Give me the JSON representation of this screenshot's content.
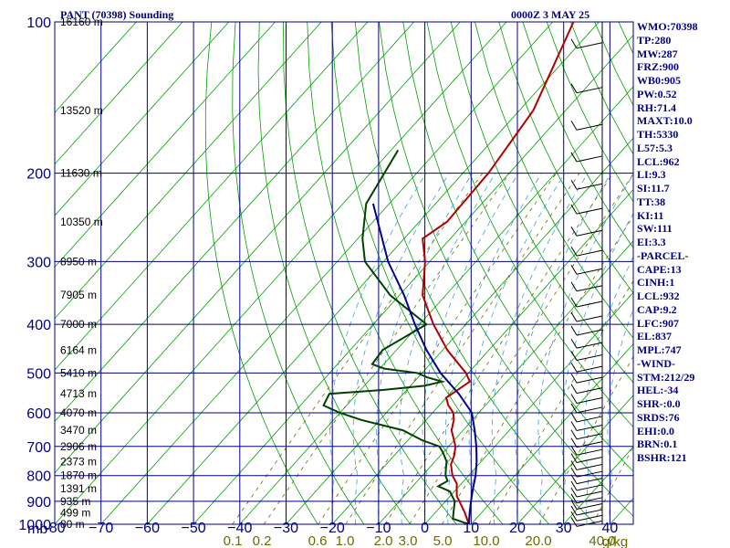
{
  "header": {
    "station": "PANT (70398) Sounding",
    "time": "0000Z  3 MAY 25"
  },
  "colors": {
    "axis": "#000080",
    "temperature": "#b00000",
    "dewpoint": "#004000",
    "parcel": "#00008b",
    "isotherm": "#00a000",
    "mixing_ratio": "#6b6b00"
  },
  "chart_data": {
    "type": "line",
    "title": "PANT (70398) Sounding",
    "pressure_unit_label": "mb",
    "mixing_ratio_unit_label": "g/kg",
    "pressure_levels": [
      100,
      200,
      300,
      400,
      500,
      600,
      700,
      800,
      900,
      1000
    ],
    "pressure_tick_labels": [
      "100",
      "200",
      "300",
      "400",
      "500",
      "600",
      "700",
      "800",
      "900",
      "1000"
    ],
    "temperature_ticks": [
      -80,
      -70,
      -60,
      -50,
      -40,
      -30,
      -20,
      -10,
      0,
      10,
      20,
      30,
      40
    ],
    "temperature_tick_labels": [
      "-80",
      "−70",
      "−60",
      "−50",
      "−40",
      "−30",
      "−20",
      "−10",
      "0",
      "10",
      "20",
      "30",
      "40"
    ],
    "mixing_ratio_ticks": [
      0.1,
      0.2,
      0.6,
      1.0,
      2.0,
      3.0,
      5.0,
      10.0,
      20.0,
      40.0
    ],
    "mixing_ratio_tick_labels": [
      "0.1",
      "0.2",
      "0.6",
      "1.0",
      "2.0",
      "3.0",
      "5.0",
      "10.0",
      "20.0",
      "40.0"
    ],
    "heights": [
      {
        "p": 100,
        "label": "16160 m"
      },
      {
        "p": 150,
        "label": "13520 m"
      },
      {
        "p": 200,
        "label": "11630 m"
      },
      {
        "p": 250,
        "label": "10350 m"
      },
      {
        "p": 300,
        "label": "8950 m"
      },
      {
        "p": 350,
        "label": "7905 m"
      },
      {
        "p": 400,
        "label": "7000 m"
      },
      {
        "p": 450,
        "label": "6164 m"
      },
      {
        "p": 500,
        "label": "5410 m"
      },
      {
        "p": 550,
        "label": "4713 m"
      },
      {
        "p": 600,
        "label": "4070 m"
      },
      {
        "p": 650,
        "label": "3470 m"
      },
      {
        "p": 700,
        "label": "2906 m"
      },
      {
        "p": 750,
        "label": "2373 m"
      },
      {
        "p": 800,
        "label": "1870 m"
      },
      {
        "p": 850,
        "label": "1391 m"
      },
      {
        "p": 900,
        "label": "935 m"
      },
      {
        "p": 950,
        "label": "499 m"
      },
      {
        "p": 1000,
        "label": "80 m"
      }
    ],
    "series": [
      {
        "key": "temperature",
        "points": [
          [
            100,
            -65.5
          ],
          [
            150,
            -57
          ],
          [
            200,
            -54.5
          ],
          [
            250,
            -54
          ],
          [
            270,
            -56
          ],
          [
            300,
            -51
          ],
          [
            350,
            -45
          ],
          [
            400,
            -37
          ],
          [
            450,
            -29
          ],
          [
            500,
            -20.5
          ],
          [
            520,
            -18
          ],
          [
            540,
            -19
          ],
          [
            560,
            -20
          ],
          [
            580,
            -18
          ],
          [
            600,
            -15.5
          ],
          [
            620,
            -14
          ],
          [
            650,
            -12.5
          ],
          [
            700,
            -8.5
          ],
          [
            730,
            -7
          ],
          [
            760,
            -6
          ],
          [
            800,
            -3.5
          ],
          [
            830,
            -1
          ],
          [
            850,
            0
          ],
          [
            880,
            1.5
          ],
          [
            900,
            3
          ],
          [
            950,
            6.5
          ],
          [
            1000,
            9.5
          ]
        ]
      },
      {
        "key": "dewpoint",
        "points": [
          [
            180,
            -78.5
          ],
          [
            230,
            -75
          ],
          [
            270,
            -69
          ],
          [
            300,
            -64
          ],
          [
            350,
            -52
          ],
          [
            400,
            -38.5
          ],
          [
            450,
            -43
          ],
          [
            480,
            -42.5
          ],
          [
            490,
            -39
          ],
          [
            500,
            -31
          ],
          [
            510,
            -28
          ],
          [
            520,
            -24
          ],
          [
            530,
            -27
          ],
          [
            540,
            -35
          ],
          [
            550,
            -46
          ],
          [
            580,
            -45
          ],
          [
            600,
            -40
          ],
          [
            620,
            -34
          ],
          [
            650,
            -23
          ],
          [
            680,
            -17
          ],
          [
            700,
            -12
          ],
          [
            720,
            -10
          ],
          [
            750,
            -7.5
          ],
          [
            770,
            -6.5
          ],
          [
            800,
            -5
          ],
          [
            820,
            -3.5
          ],
          [
            840,
            -4.5
          ],
          [
            860,
            -1
          ],
          [
            900,
            2
          ],
          [
            950,
            4
          ],
          [
            975,
            5
          ],
          [
            1000,
            9.5
          ]
        ]
      },
      {
        "key": "parcel",
        "points": [
          [
            230,
            -73.5
          ],
          [
            300,
            -59
          ],
          [
            350,
            -49
          ],
          [
            400,
            -41
          ],
          [
            450,
            -33.5
          ],
          [
            500,
            -26
          ],
          [
            550,
            -18
          ],
          [
            600,
            -11.5
          ],
          [
            650,
            -7.5
          ],
          [
            700,
            -4
          ],
          [
            750,
            -1
          ],
          [
            800,
            1.5
          ],
          [
            850,
            3.5
          ],
          [
            900,
            5.5
          ],
          [
            950,
            7.5
          ],
          [
            1000,
            9.5
          ]
        ]
      }
    ]
  },
  "indices": [
    "WMO:70398",
    "TP:280",
    "MW:287",
    "FRZ:900",
    "WB0:905",
    "PW:0.52",
    "RH:71.4",
    "MAXT:10.0",
    "TH:5330",
    "L57:5.3",
    "LCL:962",
    "LI:9.3",
    "SI:11.7",
    "TT:38",
    "KI:11",
    "SW:111",
    "EI:3.3",
    "-PARCEL-",
    "CAPE:13",
    "CINH:1",
    "LCL:932",
    "CAP:9.2",
    "LFC:907",
    "EL:837",
    "MPL:747",
    "-WIND-",
    "STM:212/29",
    "HEL:-34",
    "SHR-:0.0",
    "SRDS:76",
    "EHI:0.0",
    "BRN:0.1",
    "BSHR:121"
  ]
}
